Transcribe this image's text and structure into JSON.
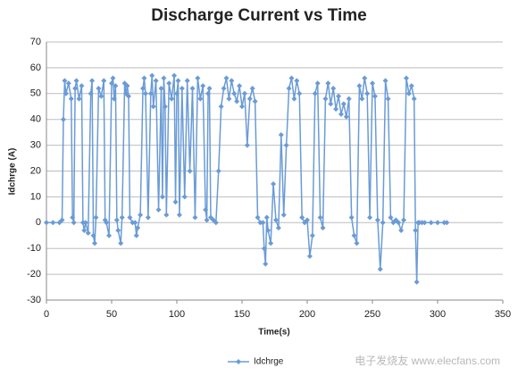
{
  "chart_data": {
    "type": "line",
    "title": "Discharge Current vs Time",
    "xlabel": "Time(s)",
    "ylabel": "Idchrge (A)",
    "watermark": "电子发烧友 www.elecfans.com",
    "x": [
      0,
      5,
      10,
      12,
      13,
      14,
      15,
      17,
      19,
      20,
      21,
      22,
      23,
      25,
      27,
      28,
      29,
      30,
      32,
      34,
      35,
      36,
      37,
      38,
      40,
      42,
      44,
      45,
      46,
      48,
      50,
      51,
      52,
      53,
      54,
      55,
      57,
      58,
      60,
      61,
      62,
      63,
      64,
      66,
      68,
      69,
      70,
      72,
      74,
      75,
      76,
      78,
      80,
      81,
      82,
      84,
      86,
      88,
      89,
      90,
      91,
      92,
      94,
      96,
      98,
      99,
      100,
      101,
      102,
      104,
      106,
      108,
      110,
      112,
      114,
      116,
      118,
      120,
      122,
      123,
      124,
      125,
      126,
      128,
      130,
      132,
      134,
      136,
      138,
      140,
      142,
      144,
      146,
      148,
      150,
      152,
      154,
      156,
      158,
      160,
      162,
      164,
      166,
      167,
      168,
      169,
      170,
      172,
      174,
      176,
      178,
      180,
      182,
      184,
      186,
      188,
      190,
      192,
      194,
      196,
      198,
      200,
      202,
      204,
      206,
      208,
      210,
      212,
      214,
      216,
      218,
      220,
      222,
      224,
      226,
      228,
      230,
      232,
      234,
      236,
      238,
      240,
      242,
      244,
      246,
      248,
      250,
      252,
      254,
      256,
      258,
      260,
      262,
      264,
      266,
      268,
      270,
      272,
      274,
      276,
      278,
      280,
      282,
      283,
      284,
      285,
      286,
      288,
      290,
      295,
      300,
      305,
      307
    ],
    "series": [
      {
        "name": "Idchrge",
        "color": "#6a9bd6",
        "values": [
          0,
          0,
          0,
          1,
          40,
          55,
          50,
          54,
          48,
          2,
          0,
          52,
          55,
          48,
          53,
          0,
          -3,
          0,
          -4,
          50,
          55,
          -5,
          -8,
          2,
          52,
          49,
          55,
          1,
          0,
          -5,
          54,
          56,
          48,
          53,
          1,
          -3,
          -8,
          2,
          54,
          50,
          53,
          49,
          2,
          0,
          0,
          -5,
          -2,
          3,
          52,
          56,
          50,
          2,
          50,
          57,
          45,
          55,
          5,
          52,
          10,
          56,
          45,
          3,
          54,
          48,
          57,
          8,
          50,
          55,
          3,
          52,
          10,
          55,
          20,
          52,
          2,
          56,
          48,
          53,
          5,
          1,
          50,
          52,
          2,
          1,
          0,
          20,
          45,
          52,
          56,
          48,
          55,
          50,
          47,
          53,
          45,
          50,
          30,
          48,
          52,
          47,
          2,
          0,
          0,
          -10,
          -16,
          2,
          -3,
          -8,
          15,
          1,
          -2,
          34,
          3,
          30,
          52,
          56,
          48,
          55,
          50,
          2,
          0,
          1,
          -13,
          -5,
          50,
          54,
          2,
          -2,
          48,
          54,
          46,
          52,
          44,
          49,
          42,
          46,
          41,
          48,
          2,
          -5,
          -8,
          53,
          48,
          56,
          50,
          2,
          54,
          49,
          1,
          -18,
          0,
          55,
          48,
          2,
          0,
          1,
          0,
          -3,
          1,
          56,
          50,
          53,
          48,
          -3,
          -23,
          0,
          0,
          0,
          0,
          0,
          0,
          0,
          0
        ]
      }
    ],
    "xlim": [
      0,
      350
    ],
    "xticks": [
      0,
      50,
      100,
      150,
      200,
      250,
      300,
      350
    ],
    "ylim": [
      -30,
      70
    ],
    "yticks": [
      -30,
      -20,
      -10,
      0,
      10,
      20,
      30,
      40,
      50,
      60,
      70
    ],
    "grid": true,
    "legend": "bottom"
  }
}
